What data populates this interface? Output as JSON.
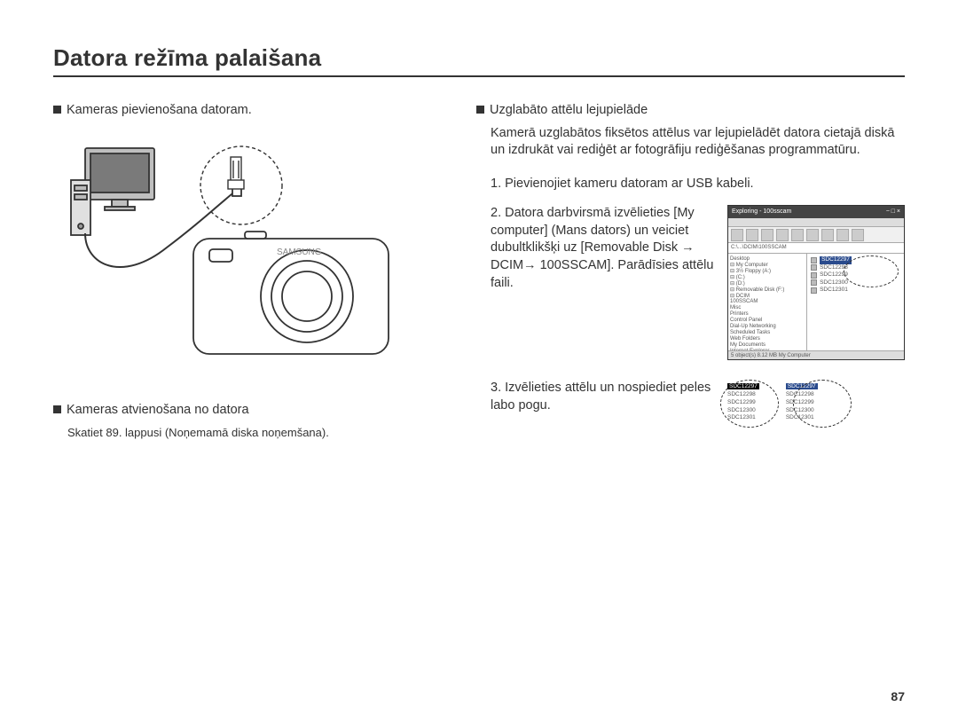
{
  "page": {
    "title": "Datora režīma palaišana",
    "number": "87"
  },
  "left": {
    "sec1_title": "Kameras pievienošana datoram.",
    "sec2_title": "Kameras atvienošana no datora",
    "sec2_note": "Skatiet 89. lappusi (Noņemamā diska noņemšana)."
  },
  "right": {
    "sec_title": "Uzglabāto attēlu lejupielāde",
    "intro": "Kamerā uzglabātos fiksētos attēlus var lejupielādēt datora cietajā diskā un izdrukāt vai rediģēt ar fotogrāfiju rediģēšanas programmatūru.",
    "step1": "1. Pievienojiet kameru datoram ar USB kabeli.",
    "step2": "2. Datora darbvirsmā izvēlieties [My computer] (Mans dators) un veiciet dubultklikšķi uz  [Removable Disk → DCIM→ 100SSCAM]. Parādīsies attēlu faili.",
    "step3": "3. Izvēlieties attēlu un nospiediet peles labo pogu."
  },
  "explorer": {
    "title_left": "Exploring - 100sscam",
    "addr": "C:\\...\\DCIM\\100SSCAM",
    "tree": [
      "Desktop",
      "⊟ My Computer",
      "  ⊟ 3½ Floppy (A:)",
      "  ⊟ (C:)",
      "  ⊟ (D:)",
      "  ⊟ Removable Disk (F:)",
      "    ⊟ DCIM",
      "      100SSCAM",
      "      Misc",
      "  Printers",
      "  Control Panel",
      "  Dial-Up Networking",
      "  Scheduled Tasks",
      "  Web Folders",
      "My Documents",
      "Internet Explorer",
      "Network Neighborhood",
      "Recycle Bin"
    ],
    "files": [
      "SDC12297",
      "SDC12298",
      "SDC12299",
      "SDC12300",
      "SDC12301"
    ],
    "status": "5 object(s)   8.12 MB  My Computer"
  },
  "small_left_files": [
    "SDC12297",
    "SDC12298",
    "SDC12299",
    "SDC12300",
    "SDC12301"
  ],
  "small_right_files": [
    "SDC12297",
    "SDC12298",
    "SDC12299",
    "SDC12300",
    "SDC12301"
  ],
  "colors": {
    "text": "#333333",
    "selection": "#2a4b8d",
    "border": "#333333",
    "panel_bg": "#e8e8e8"
  }
}
